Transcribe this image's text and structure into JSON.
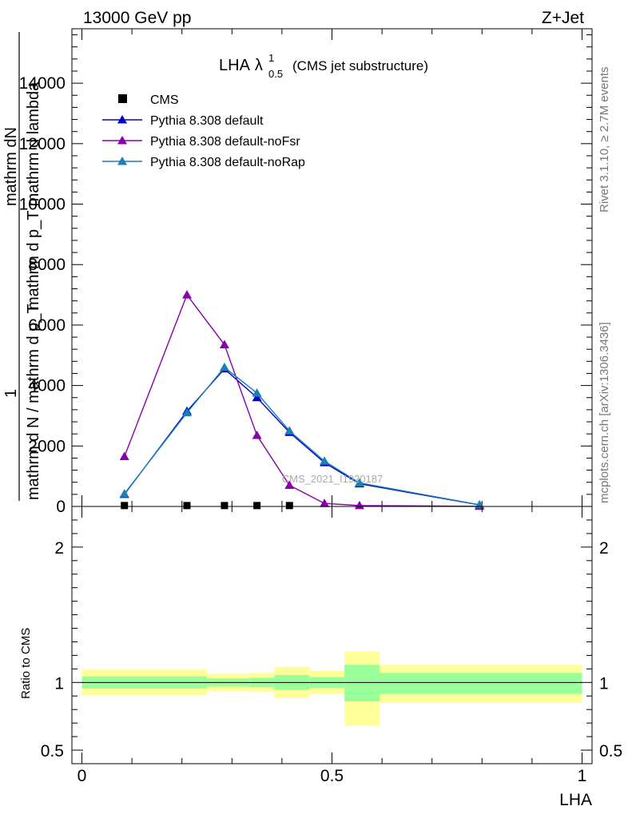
{
  "header": {
    "left": "13000 GeV pp",
    "right": "Z+Jet"
  },
  "side_labels": {
    "rivet": "Rivet 3.1.10, ≥ 2.7M events",
    "mcplots": "mcplots.cern.ch [arXiv:1306.3436]"
  },
  "watermark": "CMS_2021_I1920187",
  "chart_data": [
    {
      "type": "line",
      "title": "LHA",
      "title_symbol": "λ",
      "title_sup": "1",
      "title_sub": "0.5",
      "title_suffix": "(CMS jet substructure)",
      "ylabel_top": "mathrm dN",
      "ylabel_mid": "mathrm d p_T mathrm d lambda",
      "ylabel_one": "1",
      "ylabel_bottom": "mathrm d N / mathrm d p_T",
      "ylim": [
        0,
        15800
      ],
      "y_ticks": [
        {
          "v": 0,
          "label": "0"
        },
        {
          "v": 2000,
          "label": "2000"
        },
        {
          "v": 4000,
          "label": "4000"
        },
        {
          "v": 6000,
          "label": "6000"
        },
        {
          "v": 8000,
          "label": "8000"
        },
        {
          "v": 10000,
          "label": "10000"
        },
        {
          "v": 12000,
          "label": "12000"
        },
        {
          "v": 14000,
          "label": "14000"
        }
      ],
      "legend_position": "top-left",
      "series": [
        {
          "name": "CMS",
          "color": "#000000",
          "marker": "square",
          "x": [
            0.085,
            0.21,
            0.285,
            0.35,
            0.415
          ],
          "y": [
            30,
            30,
            30,
            30,
            30
          ]
        },
        {
          "name": "Pythia 8.308 default",
          "color": "#0000cc",
          "marker": "triangle",
          "x": [
            0.085,
            0.21,
            0.285,
            0.35,
            0.415,
            0.485,
            0.555,
            0.795
          ],
          "y": [
            400,
            3150,
            4550,
            3600,
            2450,
            1450,
            750,
            50
          ]
        },
        {
          "name": "Pythia 8.308 default-noFsr",
          "color": "#8800aa",
          "marker": "triangle",
          "x": [
            0.085,
            0.21,
            0.285,
            0.35,
            0.415,
            0.485,
            0.555,
            0.795
          ],
          "y": [
            1650,
            7000,
            5350,
            2350,
            700,
            100,
            30,
            5
          ]
        },
        {
          "name": "Pythia 8.308 default-noRap",
          "color": "#1a80b0",
          "marker": "triangle",
          "x": [
            0.085,
            0.21,
            0.285,
            0.35,
            0.415,
            0.485,
            0.555,
            0.795
          ],
          "y": [
            420,
            3100,
            4600,
            3750,
            2500,
            1500,
            780,
            55
          ]
        }
      ]
    },
    {
      "type": "bar",
      "ylabel": "Ratio to CMS",
      "xlabel": "LHA",
      "xlim": [
        -0.02,
        1.02
      ],
      "ylim": [
        0.4,
        2.3
      ],
      "x_ticks": [
        {
          "v": 0,
          "label": "0"
        },
        {
          "v": 0.5,
          "label": "0.5"
        },
        {
          "v": 1,
          "label": "1"
        }
      ],
      "y_ticks": [
        {
          "v": 0.5,
          "label": "0.5"
        },
        {
          "v": 1,
          "label": "1"
        },
        {
          "v": 2,
          "label": "2"
        }
      ],
      "bands": [
        {
          "x0": 0.0,
          "x1": 0.25,
          "stat_lo": 0.955,
          "stat_hi": 1.045,
          "tot_lo": 0.905,
          "tot_hi": 1.095
        },
        {
          "x0": 0.25,
          "x1": 0.335,
          "stat_lo": 0.97,
          "stat_hi": 1.03,
          "tot_lo": 0.935,
          "tot_hi": 1.065
        },
        {
          "x0": 0.335,
          "x1": 0.385,
          "stat_lo": 0.965,
          "stat_hi": 1.035,
          "tot_lo": 0.93,
          "tot_hi": 1.07
        },
        {
          "x0": 0.385,
          "x1": 0.455,
          "stat_lo": 0.945,
          "stat_hi": 1.055,
          "tot_lo": 0.885,
          "tot_hi": 1.115
        },
        {
          "x0": 0.455,
          "x1": 0.525,
          "stat_lo": 0.96,
          "stat_hi": 1.04,
          "tot_lo": 0.915,
          "tot_hi": 1.085
        },
        {
          "x0": 0.525,
          "x1": 0.595,
          "stat_lo": 0.86,
          "stat_hi": 1.13,
          "tot_lo": 0.68,
          "tot_hi": 1.23
        },
        {
          "x0": 0.595,
          "x1": 1.0,
          "stat_lo": 0.915,
          "stat_hi": 1.07,
          "tot_lo": 0.85,
          "tot_hi": 1.13
        }
      ],
      "stat_color": "#99ff99",
      "total_color": "#ffff99"
    }
  ]
}
